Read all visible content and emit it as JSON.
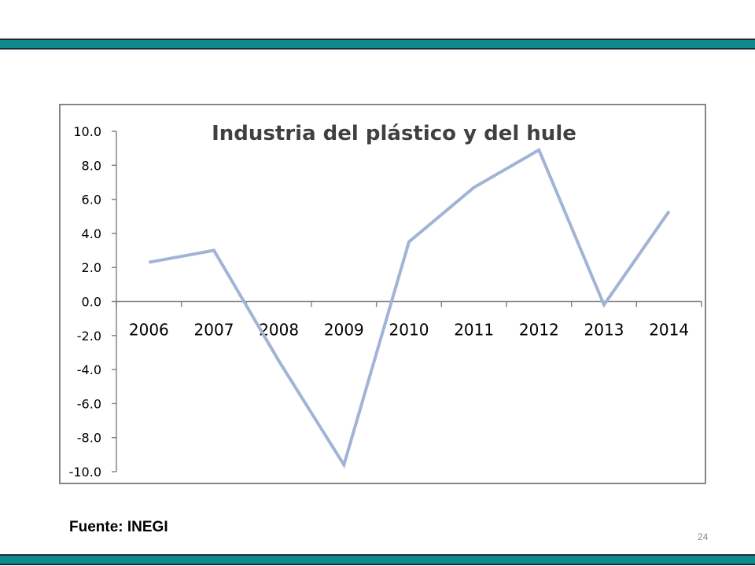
{
  "slide": {
    "source": "Fuente: INEGI",
    "page_number": "24",
    "band_color": "#0e8a8a",
    "band_border_color": "#1e2b35"
  },
  "chart_data": {
    "type": "line",
    "title": "Industria del plástico y del hule",
    "xlabel": "",
    "ylabel": "",
    "categories": [
      "2006",
      "2007",
      "2008",
      "2009",
      "2010",
      "2011",
      "2012",
      "2013",
      "2014"
    ],
    "series": [
      {
        "values": [
          2.3,
          3.0,
          -3.5,
          -9.6,
          3.5,
          6.7,
          8.9,
          -0.2,
          5.3
        ],
        "color": "#a2b4d6"
      }
    ],
    "ylim": [
      -10.0,
      10.0
    ],
    "yticks": [
      "10.0",
      "8.0",
      "6.0",
      "4.0",
      "2.0",
      "0.0",
      "-2.0",
      "-4.0",
      "-6.0",
      "-8.0",
      "-10.0"
    ],
    "grid": false,
    "legend": "none"
  }
}
